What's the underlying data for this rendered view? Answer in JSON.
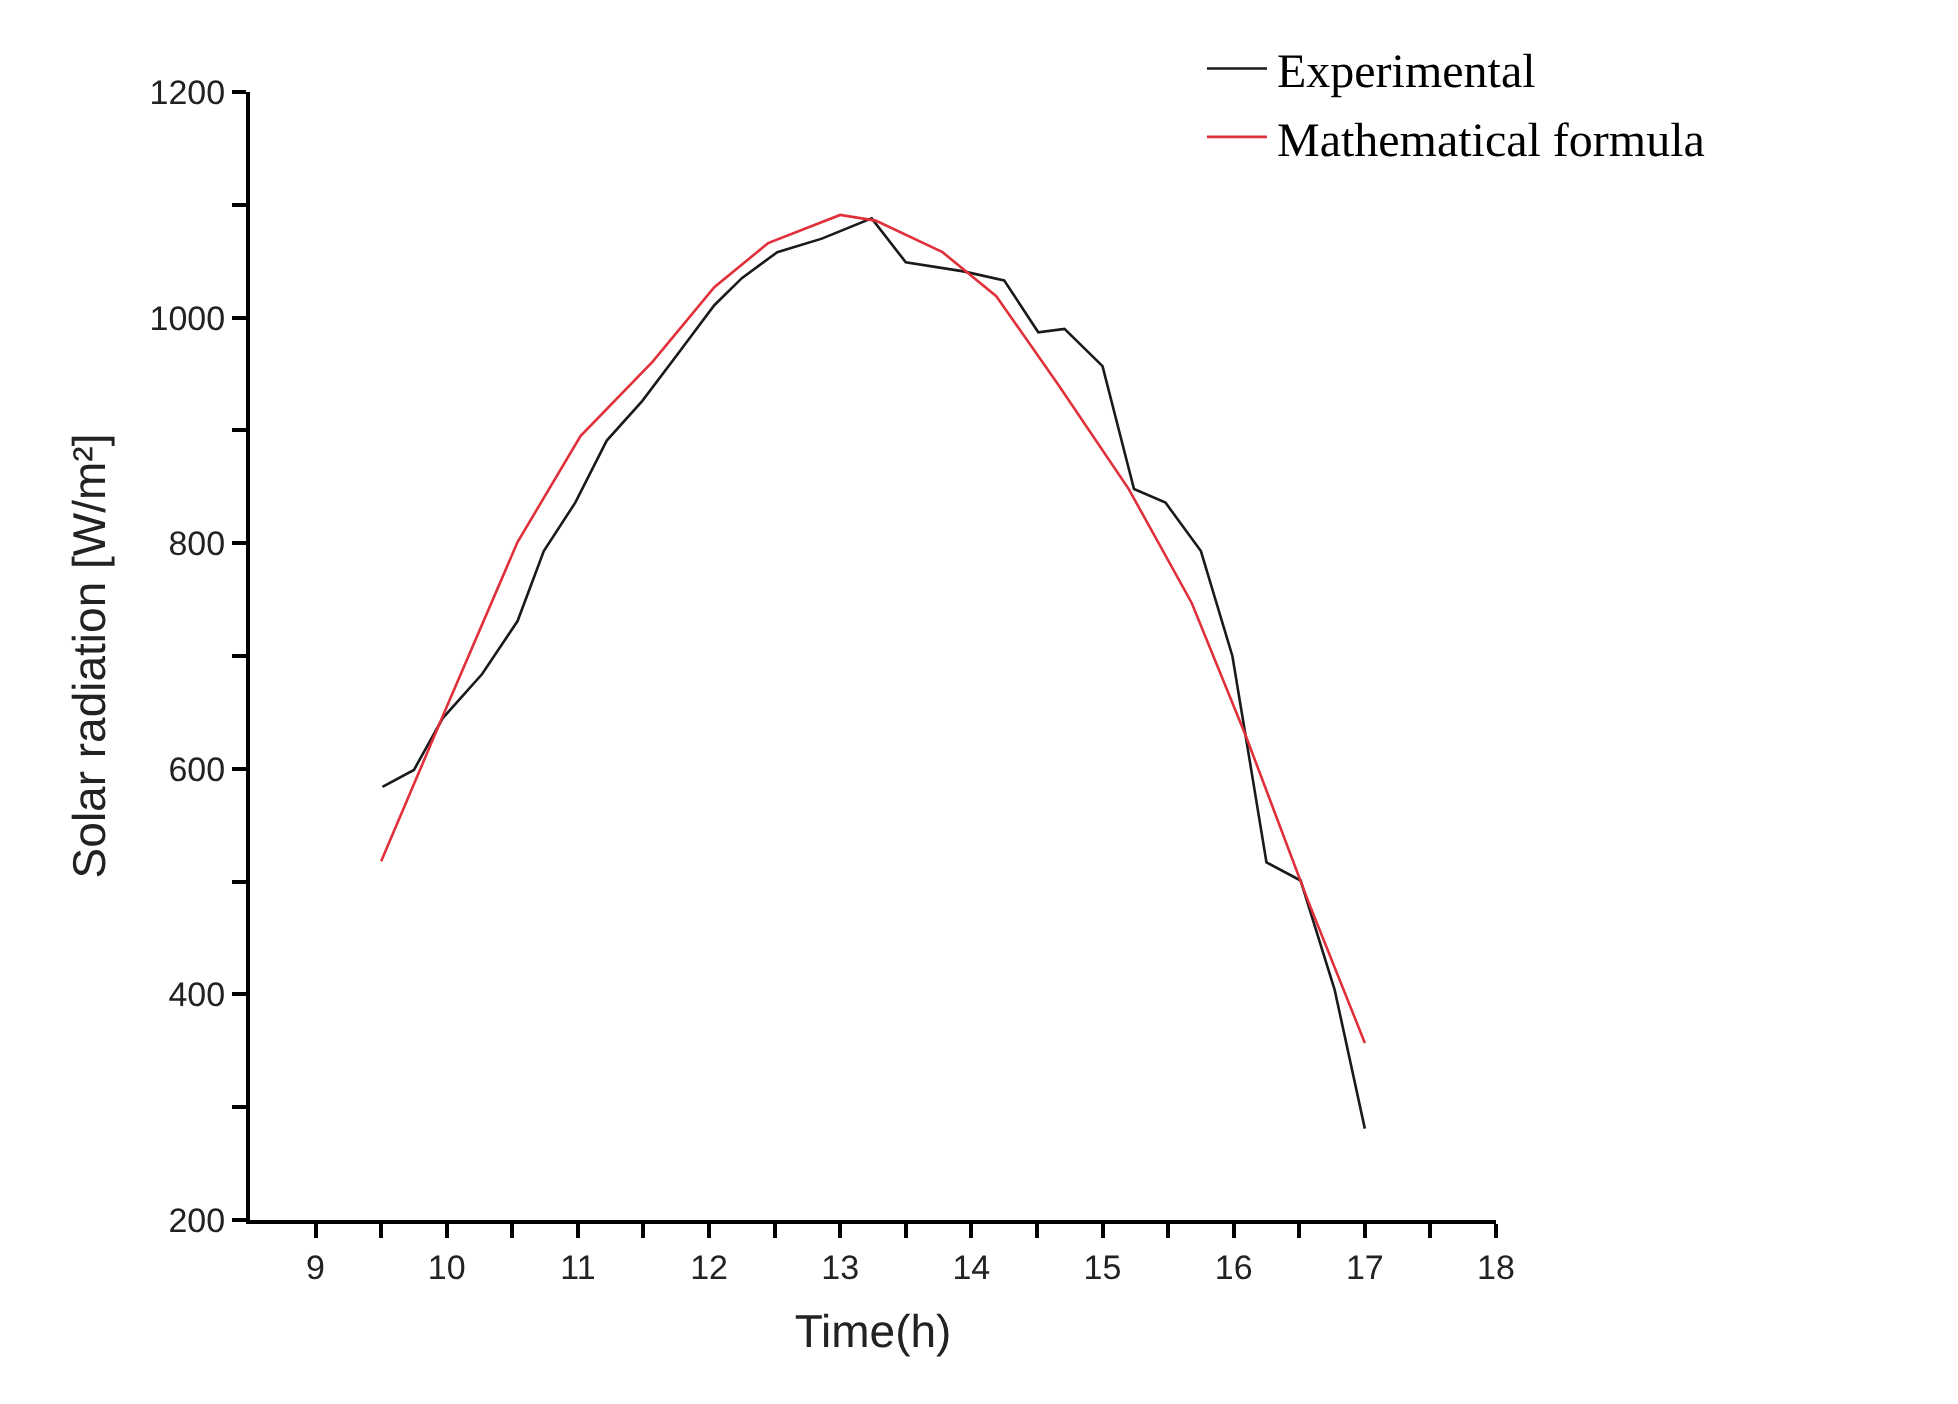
{
  "chart_data": {
    "type": "line",
    "xlabel": "Time(h)",
    "ylabel": "Solar radiation [W/m²]",
    "xlim": [
      8.5,
      18
    ],
    "ylim": [
      200,
      1200
    ],
    "xticks": [
      9,
      {
        "value": 9.5,
        "label": null
      },
      10,
      {
        "value": 10.5,
        "label": null
      },
      11,
      {
        "value": 11.5,
        "label": null
      },
      12,
      {
        "value": 12.5,
        "label": null
      },
      13,
      {
        "value": 13.5,
        "label": null
      },
      14,
      {
        "value": 14.5,
        "label": null
      },
      15,
      {
        "value": 15.5,
        "label": null
      },
      16,
      {
        "value": 16.5,
        "label": null
      },
      17,
      {
        "value": 17.5,
        "label": null
      },
      18
    ],
    "yticks": [
      200,
      {
        "value": 300,
        "label": null
      },
      400,
      {
        "value": 500,
        "label": null
      },
      600,
      {
        "value": 700,
        "label": null
      },
      800,
      {
        "value": 900,
        "label": null
      },
      1000,
      {
        "value": 1100,
        "label": null
      },
      1200
    ],
    "legend": "top right",
    "marker": "none",
    "line_style": "solid",
    "series": [
      {
        "name": "Experimental",
        "color": "#1a1a1a",
        "x": [
          9.51,
          9.75,
          9.97,
          10.27,
          10.54,
          10.74,
          10.98,
          11.22,
          11.49,
          11.77,
          12.04,
          12.25,
          12.52,
          12.86,
          13.24,
          13.5,
          13.94,
          14.25,
          14.51,
          14.71,
          15.0,
          15.24,
          15.48,
          15.75,
          15.99,
          16.09,
          16.25,
          16.51,
          16.77,
          17.0
        ],
        "values": [
          584,
          599,
          645,
          684,
          731,
          793,
          836,
          891,
          926,
          969,
          1011,
          1035,
          1058,
          1070,
          1088,
          1049,
          1041,
          1033,
          987,
          990,
          957,
          848,
          836,
          793,
          700,
          630,
          517,
          501,
          404,
          281
        ]
      },
      {
        "name": "Mathematical formula",
        "color": "#e0303a",
        "x": [
          9.5,
          10.0,
          10.54,
          11.02,
          11.57,
          12.04,
          12.45,
          13.0,
          13.27,
          13.78,
          14.19,
          14.66,
          15.2,
          15.68,
          16.09,
          16.57,
          17.0
        ],
        "values": [
          518,
          655,
          801,
          895,
          961,
          1027,
          1066,
          1091,
          1086,
          1058,
          1019,
          941,
          848,
          747,
          630,
          482,
          357
        ]
      }
    ]
  }
}
